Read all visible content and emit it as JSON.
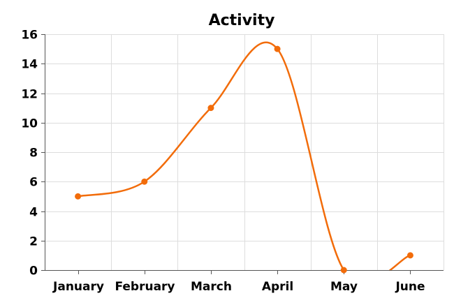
{
  "chart_data": {
    "type": "line",
    "title": "Activity",
    "xlabel": "",
    "ylabel": "",
    "categories": [
      "January",
      "February",
      "March",
      "April",
      "May",
      "June"
    ],
    "series": [
      {
        "values": [
          5,
          6,
          11,
          15,
          0,
          1
        ]
      }
    ],
    "ylim": [
      0,
      16
    ],
    "yticks": [
      "0",
      "2",
      "4",
      "6",
      "8",
      "10",
      "12",
      "14",
      "16"
    ],
    "smooth": true,
    "grid": true,
    "legend": "none",
    "colors": {
      "line": "#f26c0a",
      "grid": "#dddddd",
      "axis": "#555555"
    }
  }
}
